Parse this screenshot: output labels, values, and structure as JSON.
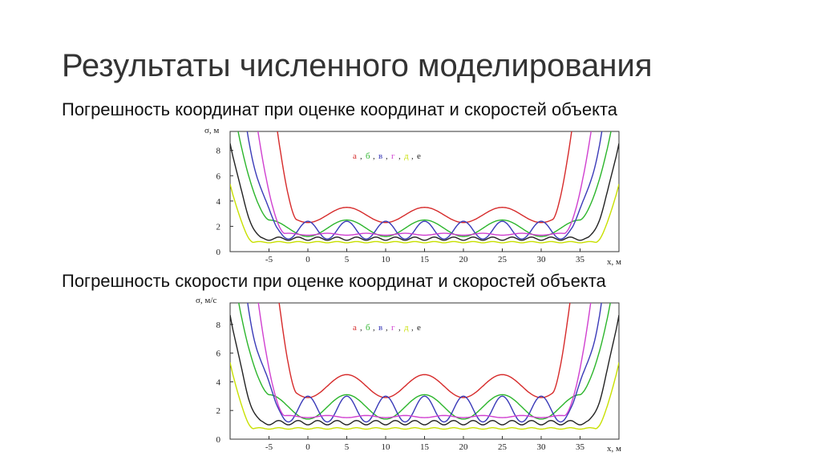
{
  "slide": {
    "title": "Результаты численного моделирования",
    "subtitle_position": "Погрешность координат при оценке координат и скоростей объекта",
    "subtitle_velocity": "Погрешность скорости при оценке координат и скоростей объекта"
  },
  "chart_data": [
    {
      "type": "line",
      "ylabel": "σ, м",
      "xlabel": "x, м",
      "xlim": [
        -10,
        40
      ],
      "ylim": [
        0,
        9.5
      ],
      "xticks": [
        "-5",
        "0",
        "5",
        "10",
        "15",
        "20",
        "25",
        "30",
        "35"
      ],
      "yticks": [
        "0",
        "2",
        "4",
        "6",
        "8"
      ],
      "legend": {
        "placement": "top-center",
        "entries": [
          {
            "label": "а",
            "color": "#d62a2a"
          },
          {
            "label": "б",
            "color": "#2bb52b"
          },
          {
            "label": "в",
            "color": "#3a3ab8"
          },
          {
            "label": "г",
            "color": "#d040d0"
          },
          {
            "label": "д",
            "color": "#c8e000"
          },
          {
            "label": "е",
            "color": "#222222"
          }
        ]
      },
      "series": [
        {
          "name": "а",
          "color": "#d62a2a",
          "floor": 2.3,
          "amp": 1.2,
          "period": 10,
          "phase": 0,
          "ramp_start": -1.5,
          "ramp_end": 31.5,
          "ramp_rate": 4.5
        },
        {
          "name": "б",
          "color": "#2bb52b",
          "floor": 1.2,
          "amp": 1.3,
          "period": 10,
          "phase": 0,
          "ramp_start": -5,
          "ramp_end": 35,
          "ramp_rate": 2.7
        },
        {
          "name": "в",
          "color": "#3a3ab8",
          "floor": 1.0,
          "amp": 1.4,
          "period": 5,
          "phase": 2.5,
          "ramp_start": -4,
          "ramp_end": 34,
          "ramp_rate": 3.0
        },
        {
          "name": "г",
          "color": "#d040d0",
          "floor": 1.3,
          "amp": 0.15,
          "period": 5,
          "phase": 0,
          "ramp_start": -3,
          "ramp_end": 33,
          "ramp_rate": 3.4
        },
        {
          "name": "д",
          "color": "#c8e000",
          "floor": 0.7,
          "amp": 0.1,
          "period": 2.5,
          "phase": 0,
          "ramp_start": -7,
          "ramp_end": 37,
          "ramp_rate": 2.4
        },
        {
          "name": "е",
          "color": "#222222",
          "floor": 0.9,
          "amp": 0.25,
          "period": 2.5,
          "phase": 0,
          "ramp_start": -6,
          "ramp_end": 36,
          "ramp_rate": 2.5
        }
      ]
    },
    {
      "type": "line",
      "ylabel": "σ, м/с",
      "xlabel": "x, м",
      "xlim": [
        -10,
        40
      ],
      "ylim": [
        0,
        9.5
      ],
      "xticks": [
        "-5",
        "0",
        "5",
        "10",
        "15",
        "20",
        "25",
        "30",
        "35"
      ],
      "yticks": [
        "0",
        "2",
        "4",
        "6",
        "8"
      ],
      "legend": {
        "placement": "top-center",
        "entries": [
          {
            "label": "а",
            "color": "#d62a2a"
          },
          {
            "label": "б",
            "color": "#2bb52b"
          },
          {
            "label": "в",
            "color": "#3a3ab8"
          },
          {
            "label": "г",
            "color": "#d040d0"
          },
          {
            "label": "д",
            "color": "#c8e000"
          },
          {
            "label": "е",
            "color": "#222222"
          }
        ]
      },
      "series": [
        {
          "name": "а",
          "color": "#d62a2a",
          "floor": 2.9,
          "amp": 1.6,
          "period": 10,
          "phase": 0,
          "ramp_start": -1.5,
          "ramp_end": 31.5,
          "ramp_rate": 4.5
        },
        {
          "name": "б",
          "color": "#2bb52b",
          "floor": 1.4,
          "amp": 1.7,
          "period": 10,
          "phase": 0,
          "ramp_start": -5,
          "ramp_end": 35,
          "ramp_rate": 2.7
        },
        {
          "name": "в",
          "color": "#3a3ab8",
          "floor": 1.2,
          "amp": 1.8,
          "period": 5,
          "phase": 2.5,
          "ramp_start": -4,
          "ramp_end": 34,
          "ramp_rate": 3.0
        },
        {
          "name": "г",
          "color": "#d040d0",
          "floor": 1.5,
          "amp": 0.15,
          "period": 5,
          "phase": 0,
          "ramp_start": -3,
          "ramp_end": 33,
          "ramp_rate": 3.4
        },
        {
          "name": "д",
          "color": "#c8e000",
          "floor": 0.7,
          "amp": 0.1,
          "period": 2.5,
          "phase": 0,
          "ramp_start": -7,
          "ramp_end": 37,
          "ramp_rate": 2.4
        },
        {
          "name": "е",
          "color": "#222222",
          "floor": 1.0,
          "amp": 0.3,
          "period": 2.5,
          "phase": 0,
          "ramp_start": -6,
          "ramp_end": 36,
          "ramp_rate": 2.5
        }
      ]
    }
  ]
}
